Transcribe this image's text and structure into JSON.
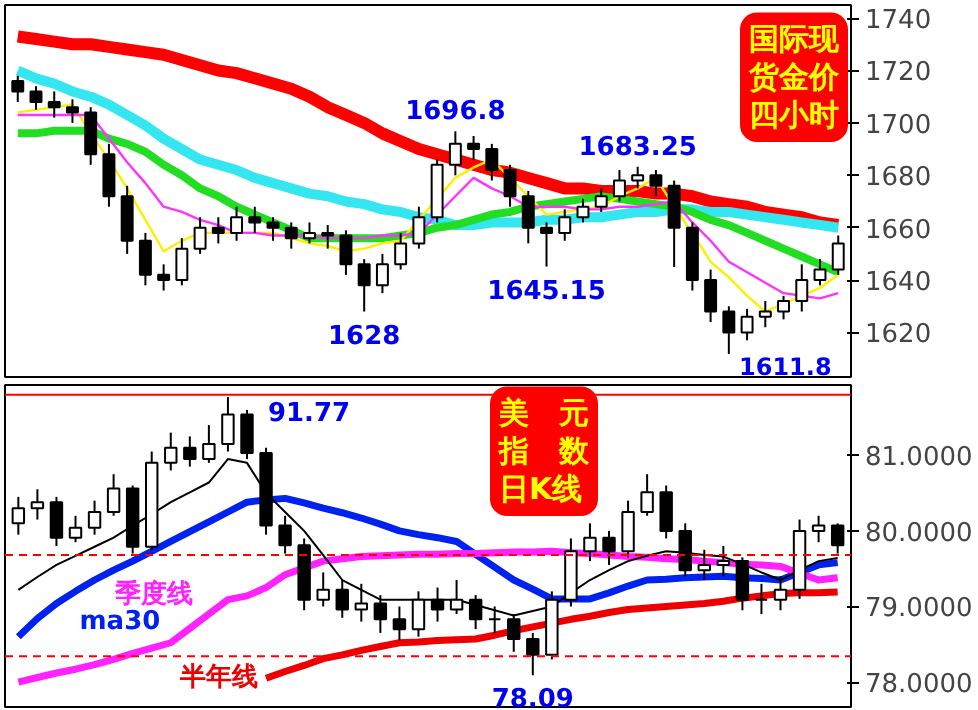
{
  "chart_data": [
    {
      "type": "candlestick",
      "title": "国际现货金价四小时",
      "ylim": [
        1603,
        1745
      ],
      "yticks": [
        1620,
        1640,
        1660,
        1680,
        1700,
        1720,
        1740
      ],
      "tick_labels": "y",
      "categories": [
        null,
        null,
        null,
        null,
        null,
        null,
        null,
        null,
        null,
        null,
        null,
        null,
        null,
        null,
        null,
        null,
        null,
        null,
        null,
        null,
        null,
        null,
        null,
        null,
        null,
        null,
        null,
        null,
        null,
        null,
        null,
        null,
        null,
        null,
        null,
        null,
        null,
        null,
        null,
        null,
        null,
        null,
        null,
        null,
        null,
        null
      ],
      "ohlc": [
        [
          1716,
          1718,
          1708,
          1712
        ],
        [
          1712,
          1714,
          1705,
          1708
        ],
        [
          1708,
          1712,
          1702,
          1706
        ],
        [
          1706,
          1709,
          1700,
          1704
        ],
        [
          1704,
          1706,
          1684,
          1688
        ],
        [
          1688,
          1692,
          1668,
          1672
        ],
        [
          1672,
          1676,
          1650,
          1655
        ],
        [
          1655,
          1658,
          1638,
          1642
        ],
        [
          1642,
          1646,
          1636,
          1640
        ],
        [
          1640,
          1656,
          1638,
          1652
        ],
        [
          1652,
          1664,
          1650,
          1660
        ],
        [
          1660,
          1664,
          1654,
          1658
        ],
        [
          1658,
          1668,
          1655,
          1664
        ],
        [
          1664,
          1668,
          1658,
          1662
        ],
        [
          1662,
          1664,
          1655,
          1660
        ],
        [
          1660,
          1662,
          1652,
          1656
        ],
        [
          1656,
          1662,
          1654,
          1658
        ],
        [
          1658,
          1661,
          1652,
          1657
        ],
        [
          1657,
          1659,
          1642,
          1646
        ],
        [
          1646,
          1648,
          1628,
          1638
        ],
        [
          1638,
          1650,
          1635,
          1646
        ],
        [
          1646,
          1658,
          1644,
          1654
        ],
        [
          1654,
          1668,
          1652,
          1664
        ],
        [
          1664,
          1686,
          1662,
          1684
        ],
        [
          1684,
          1696.8,
          1680,
          1692
        ],
        [
          1692,
          1695,
          1686,
          1690
        ],
        [
          1690,
          1692,
          1678,
          1682
        ],
        [
          1682,
          1684,
          1668,
          1672
        ],
        [
          1672,
          1674,
          1654,
          1660
        ],
        [
          1660,
          1662,
          1645.15,
          1658
        ],
        [
          1658,
          1667,
          1655,
          1664
        ],
        [
          1664,
          1671,
          1662,
          1668
        ],
        [
          1668,
          1675,
          1666,
          1672
        ],
        [
          1672,
          1682,
          1670,
          1678
        ],
        [
          1678,
          1683.25,
          1675,
          1680
        ],
        [
          1680,
          1682,
          1672,
          1676
        ],
        [
          1676,
          1678,
          1645,
          1660
        ],
        [
          1660,
          1662,
          1636,
          1640
        ],
        [
          1640,
          1644,
          1624,
          1628
        ],
        [
          1628,
          1630,
          1611.8,
          1620
        ],
        [
          1620,
          1629,
          1617,
          1626
        ],
        [
          1626,
          1632,
          1622,
          1628
        ],
        [
          1628,
          1634,
          1625,
          1632
        ],
        [
          1632,
          1646,
          1628,
          1640
        ],
        [
          1640,
          1648,
          1638,
          1644
        ],
        [
          1644,
          1657,
          1642,
          1654
        ]
      ],
      "series": [
        {
          "type": "line",
          "color": "#ff0000",
          "values": [
            1733,
            1732,
            1731,
            1730,
            1730,
            1729,
            1728,
            1727,
            1726,
            1724,
            1722,
            1720,
            1719,
            1717,
            1715,
            1713,
            1710,
            1706,
            1703,
            1700,
            1696,
            1693,
            1690,
            1688,
            1686,
            1684,
            1682,
            1681,
            1679,
            1677,
            1675,
            1675,
            1674,
            1674,
            1674,
            1673,
            1673,
            1672,
            1670,
            1669,
            1668,
            1666,
            1665,
            1664,
            1662,
            1661
          ]
        },
        {
          "type": "line",
          "color": "#33e6f0",
          "values": [
            1720,
            1717,
            1715,
            1712,
            1710,
            1707,
            1703,
            1699,
            1694,
            1690,
            1686,
            1684,
            1682,
            1679,
            1677,
            1675,
            1673,
            1672,
            1670,
            1669,
            1667,
            1666,
            1664,
            1663,
            1661,
            1661,
            1662,
            1662,
            1662,
            1663,
            1663,
            1664,
            1664,
            1665,
            1666,
            1666,
            1667,
            1667,
            1666,
            1666,
            1665,
            1664,
            1663,
            1662,
            1661,
            1660
          ]
        },
        {
          "type": "line",
          "color": "#22dd22",
          "values": [
            1696,
            1696,
            1697,
            1697,
            1697,
            1694,
            1692,
            1689,
            1684,
            1680,
            1675,
            1672,
            1668,
            1665,
            1662,
            1659,
            1656,
            1656,
            1656,
            1656,
            1656,
            1657,
            1658,
            1660,
            1661,
            1663,
            1665,
            1666,
            1668,
            1669,
            1670,
            1671,
            1672,
            1671,
            1670,
            1669,
            1668,
            1666,
            1663,
            1661,
            1658,
            1655,
            1652,
            1649,
            1646,
            1643
          ]
        },
        {
          "type": "line",
          "color": "#ffee00",
          "values": [
            1704,
            1705,
            1706,
            1707,
            1696,
            1686,
            1675,
            1663,
            1651,
            1655,
            1658,
            1658,
            1658,
            1658,
            1658,
            1656,
            1654,
            1653,
            1651,
            1652,
            1654,
            1655,
            1663,
            1671,
            1679,
            1683,
            1686,
            1679,
            1672,
            1665,
            1666,
            1667,
            1668,
            1672,
            1675,
            1679,
            1668,
            1658,
            1647,
            1641,
            1634,
            1628,
            1631,
            1634,
            1637,
            1642
          ]
        },
        {
          "type": "line",
          "color": "#ff33ff",
          "values": [
            1703,
            1703,
            1703,
            1703,
            1703,
            1694,
            1685,
            1677,
            1668,
            1666,
            1663,
            1661,
            1658,
            1658,
            1657,
            1657,
            1657,
            1656,
            1656,
            1656,
            1657,
            1657,
            1658,
            1665,
            1672,
            1679,
            1675,
            1672,
            1668,
            1668,
            1668,
            1667,
            1667,
            1668,
            1668,
            1669,
            1670,
            1662,
            1655,
            1647,
            1643,
            1639,
            1635,
            1634,
            1633,
            1635
          ]
        }
      ],
      "annotations": [
        {
          "text": "1696.8",
          "y": 1696.8
        },
        {
          "text": "1683.25",
          "y": 1683.25
        },
        {
          "text": "1645.15",
          "y": 1645.15
        },
        {
          "text": "1628",
          "y": 1628
        },
        "1611.8"
      ]
    },
    {
      "type": "candlestick",
      "title": "美　元指　数日K线",
      "ylim": [
        77.67,
        81.93
      ],
      "yticks": [
        {
          "value": 78,
          "label": "78.0000"
        },
        {
          "value": 79,
          "label": "79.0000"
        },
        {
          "value": 80,
          "label": "80.0000"
        },
        {
          "value": 81,
          "label": "81.0000"
        }
      ],
      "tick_labels": "y",
      "categories": [
        null,
        null,
        null,
        null,
        null,
        null,
        null,
        null,
        null,
        null,
        null,
        null,
        null,
        null,
        null,
        null,
        null,
        null,
        null,
        null,
        null,
        null,
        null,
        null,
        null,
        null,
        null,
        null,
        null,
        null,
        null,
        null,
        null,
        null,
        null,
        null,
        null,
        null,
        null,
        null,
        null,
        null,
        null,
        null
      ],
      "ohlc": [
        [
          80.1,
          80.45,
          79.95,
          80.3
        ],
        [
          80.3,
          80.55,
          80.15,
          80.38
        ],
        [
          80.38,
          80.45,
          79.8,
          79.91
        ],
        [
          79.91,
          80.2,
          79.85,
          80.04
        ],
        [
          80.04,
          80.4,
          79.95,
          80.25
        ],
        [
          80.25,
          80.75,
          80.2,
          80.56
        ],
        [
          80.56,
          80.6,
          79.7,
          79.79
        ],
        [
          79.79,
          81.05,
          79.75,
          80.9
        ],
        [
          80.9,
          81.3,
          80.8,
          81.1
        ],
        [
          81.1,
          81.25,
          80.85,
          80.95
        ],
        [
          80.95,
          81.4,
          80.9,
          81.15
        ],
        [
          81.15,
          81.77,
          81.05,
          81.54
        ],
        [
          81.54,
          81.6,
          80.95,
          81.03
        ],
        [
          81.03,
          81.1,
          79.95,
          80.07
        ],
        [
          80.07,
          80.2,
          79.7,
          79.81
        ],
        [
          79.81,
          79.9,
          78.95,
          79.09
        ],
        [
          79.09,
          79.45,
          79.0,
          79.22
        ],
        [
          79.22,
          79.35,
          78.85,
          78.96
        ],
        [
          78.96,
          79.3,
          78.8,
          79.04
        ],
        [
          79.04,
          79.15,
          78.65,
          78.83
        ],
        [
          78.83,
          79.0,
          78.55,
          78.7
        ],
        [
          78.7,
          79.2,
          78.6,
          79.09
        ],
        [
          79.09,
          79.25,
          78.8,
          78.96
        ],
        [
          78.96,
          79.35,
          78.9,
          79.09
        ],
        [
          79.09,
          79.15,
          78.7,
          78.83
        ],
        [
          78.83,
          79.0,
          78.65,
          78.83
        ],
        [
          78.83,
          78.9,
          78.4,
          78.57
        ],
        [
          78.57,
          78.65,
          78.09,
          78.36
        ],
        [
          78.36,
          79.2,
          78.3,
          79.09
        ],
        [
          79.09,
          79.9,
          79.0,
          79.73
        ],
        [
          79.73,
          80.1,
          79.6,
          79.91
        ],
        [
          79.91,
          80.0,
          79.55,
          79.73
        ],
        [
          79.73,
          80.4,
          79.65,
          80.25
        ],
        [
          80.25,
          80.75,
          80.2,
          80.51
        ],
        [
          80.51,
          80.6,
          79.9,
          80.0
        ],
        [
          80.0,
          80.1,
          79.4,
          79.48
        ],
        [
          79.48,
          79.75,
          79.35,
          79.55
        ],
        [
          79.55,
          79.8,
          79.4,
          79.6
        ],
        [
          79.6,
          79.65,
          78.95,
          79.09
        ],
        [
          79.09,
          79.3,
          78.9,
          79.09
        ],
        [
          79.09,
          79.4,
          78.95,
          79.22
        ],
        [
          79.22,
          80.15,
          79.1,
          80.0
        ],
        [
          80.0,
          80.2,
          79.85,
          80.07
        ],
        [
          80.07,
          80.1,
          79.7,
          79.81
        ]
      ],
      "series": [
        {
          "type": "line",
          "name": "ma30",
          "color": "#0022ee",
          "values": [
            78.6,
            78.84,
            79.04,
            79.2,
            79.35,
            79.48,
            79.6,
            79.73,
            79.86,
            79.99,
            80.12,
            80.25,
            80.38,
            80.41,
            80.43,
            80.37,
            80.3,
            80.24,
            80.17,
            80.09,
            80.0,
            79.95,
            79.91,
            79.86,
            79.69,
            79.52,
            79.35,
            79.23,
            79.1,
            79.1,
            79.1,
            79.18,
            79.27,
            79.35,
            79.36,
            79.38,
            79.39,
            79.4,
            79.38,
            79.37,
            79.35,
            79.45,
            79.55,
            79.58
          ]
        },
        {
          "type": "line",
          "name": "季度线",
          "color": "#ff22ff",
          "values": [
            78.0,
            78.06,
            78.12,
            78.17,
            78.23,
            78.3,
            78.38,
            78.45,
            78.52,
            78.71,
            78.9,
            79.09,
            79.14,
            79.25,
            79.42,
            79.51,
            79.6,
            79.63,
            79.66,
            79.67,
            79.68,
            79.69,
            79.69,
            79.7,
            79.7,
            79.71,
            79.72,
            79.72,
            79.73,
            79.71,
            79.7,
            79.68,
            79.66,
            79.65,
            79.63,
            79.62,
            79.6,
            79.58,
            79.56,
            79.55,
            79.53,
            79.44,
            79.35,
            79.38
          ]
        },
        {
          "type": "line",
          "name": "半年线",
          "color": "#ee0000",
          "values": [
            null,
            null,
            null,
            null,
            null,
            null,
            null,
            null,
            null,
            null,
            null,
            null,
            null,
            78.05,
            78.14,
            78.22,
            78.31,
            78.36,
            78.42,
            78.47,
            78.52,
            78.53,
            78.55,
            78.56,
            78.57,
            78.62,
            78.68,
            78.73,
            78.78,
            78.83,
            78.87,
            78.92,
            78.96,
            78.98,
            79.0,
            79.02,
            79.04,
            79.07,
            79.11,
            79.14,
            79.17,
            79.18,
            79.18,
            79.19
          ]
        },
        {
          "type": "line",
          "color": "#000000",
          "values": [
            79.22,
            79.39,
            79.55,
            79.67,
            79.79,
            79.91,
            80.07,
            80.22,
            80.38,
            80.51,
            80.64,
            80.95,
            80.9,
            80.5,
            80.25,
            80.0,
            79.68,
            79.35,
            79.22,
            79.09,
            79.09,
            79.09,
            79.09,
            79.09,
            79.02,
            78.95,
            78.88,
            78.94,
            79.0,
            79.18,
            79.35,
            79.48,
            79.6,
            79.67,
            79.73,
            79.71,
            79.68,
            79.66,
            79.56,
            79.45,
            79.35,
            79.48,
            79.6,
            79.64
          ]
        }
      ],
      "ref_lines": [
        {
          "axis": "y",
          "value": 81.8,
          "color": "#ff0000",
          "line_style": "solid"
        },
        {
          "axis": "y",
          "value": 79.68,
          "color": "#ff0000",
          "line_style": "dashed"
        },
        {
          "axis": "y",
          "value": 78.34,
          "color": "#ff0000",
          "line_style": "dashed"
        }
      ],
      "annotations": [
        {
          "text": "91.77",
          "y": 81.77
        },
        {
          "text": "78.09",
          "y": 78.09
        }
      ]
    }
  ]
}
